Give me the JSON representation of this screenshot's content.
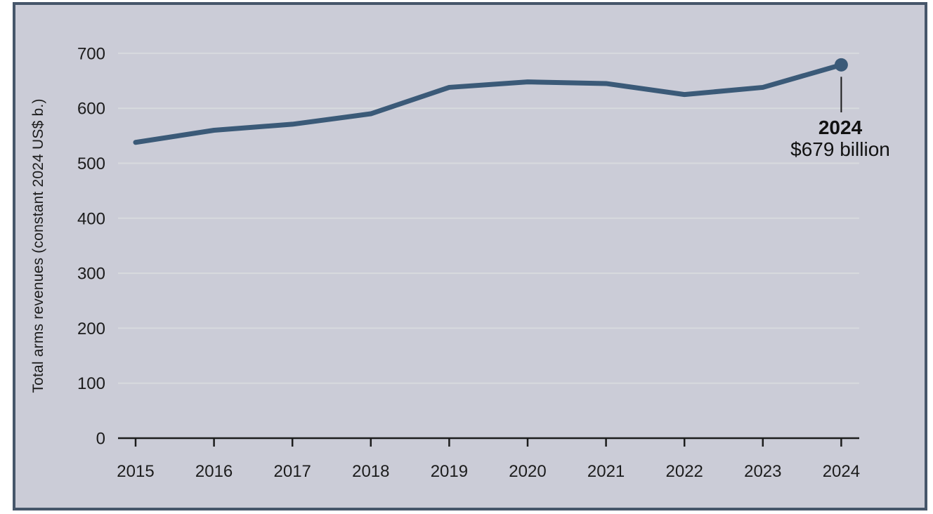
{
  "colors": {
    "page_background": "#ffffff",
    "card_background": "#cbccd7",
    "card_border": "#46566a",
    "gridline": "#d8dade",
    "axis": "#1c1c1c",
    "text": "#1c1c1c",
    "line": "#3b5a78",
    "end_dot": "#3b5a78",
    "callout_line": "#1a1a1a"
  },
  "chart_data": {
    "type": "line",
    "title": "",
    "xlabel": "",
    "ylabel": "Total arms revenues (constant 2024 US$ b.)",
    "categories": [
      "2015",
      "2016",
      "2017",
      "2018",
      "2019",
      "2020",
      "2021",
      "2022",
      "2023",
      "2024"
    ],
    "series": [
      {
        "name": "Total arms revenues (constant 2024 US$ b.)",
        "values": [
          538,
          560,
          571,
          590,
          638,
          648,
          645,
          625,
          638,
          679
        ]
      }
    ],
    "ylim": [
      0,
      700
    ],
    "yticks": [
      0,
      100,
      200,
      300,
      400,
      500,
      600,
      700
    ],
    "grid": "horizontal gridlines at every 100, light on gray panel",
    "legend": "none",
    "end_point_marker": {
      "year": "2024",
      "value": 679
    },
    "annotation": {
      "year_label": "2024",
      "value_label": "$679 billion"
    }
  }
}
